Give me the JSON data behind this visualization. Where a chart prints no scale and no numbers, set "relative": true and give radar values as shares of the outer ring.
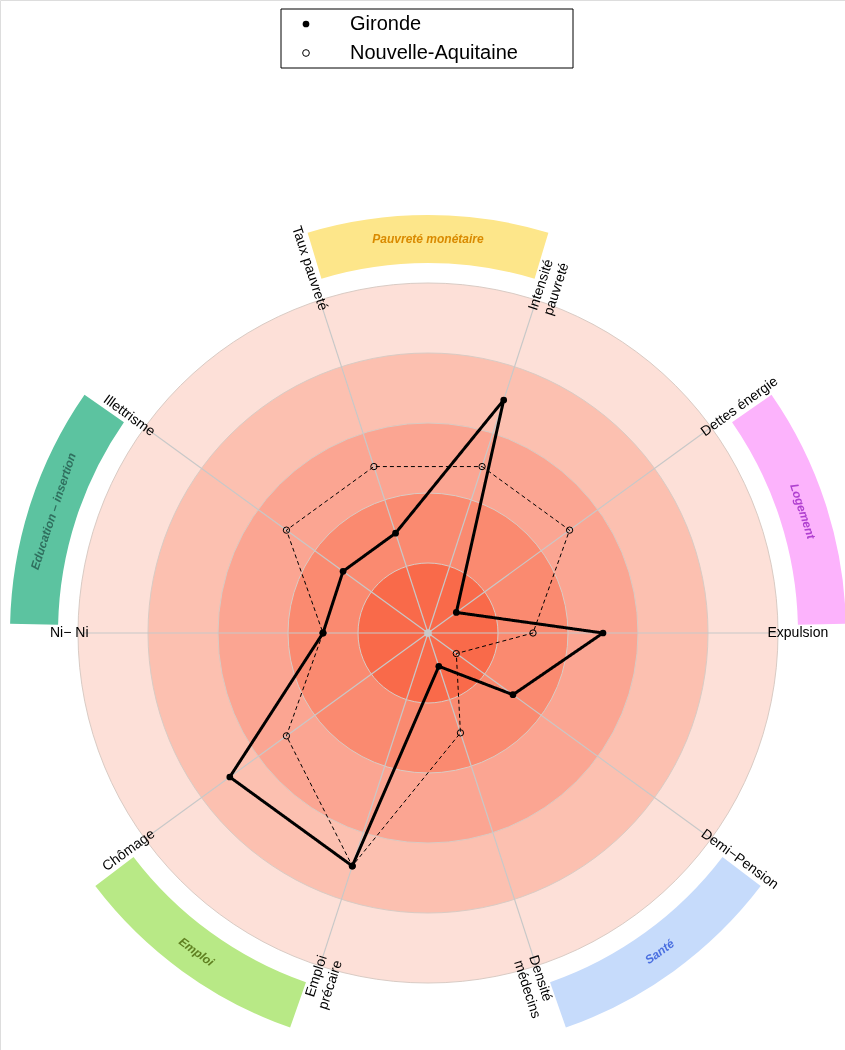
{
  "chart_data": {
    "type": "radar",
    "relative": true,
    "grid": true,
    "legend": "top",
    "marker": "circle",
    "categories": [
      "Intensité\npauvreté",
      "Dettes énergie",
      "Expulsion",
      "Demi−Pension",
      "Densité\nmédecins",
      "Emploi\nprécaire",
      "Chômage",
      "Ni− Ni",
      "Illettrisme",
      "Taux pauvreté"
    ],
    "series": [
      {
        "name": "Gironde",
        "color": "#000000",
        "line_style": "solid",
        "values": [
          0.7,
          0.1,
          0.5,
          0.3,
          0.1,
          0.7,
          0.7,
          0.3,
          0.3,
          0.3
        ]
      },
      {
        "name": "Nouvelle-Aquitaine",
        "color": "#000000",
        "line_style": "dashed",
        "values": [
          0.5,
          0.5,
          0.3,
          0.1,
          0.3,
          0.7,
          0.5,
          0.3,
          0.5,
          0.5
        ]
      }
    ],
    "annotations": [
      "Pauvreté monétaire",
      "Logement",
      "Santé",
      "Emploi",
      "Education – insertion"
    ]
  }
}
